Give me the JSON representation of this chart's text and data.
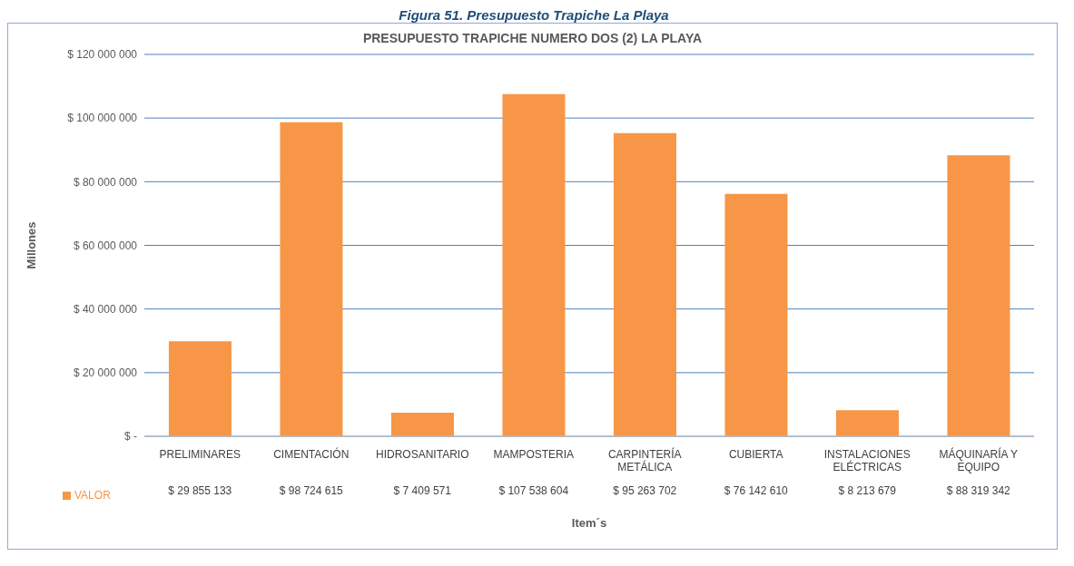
{
  "chart_data": {
    "type": "bar",
    "title": "PRESUPUESTO TRAPICHE NUMERO DOS (2) LA PLAYA",
    "annotations": [
      "Figura 51. Presupuesto Trapiche La Playa"
    ],
    "xlabel": "Item´s",
    "ylabel": "Millones",
    "categories": [
      "PRELIMINARES",
      "CIMENTACIÓN",
      "HIDROSANITARIO",
      "MAMPOSTERIA",
      "CARPINTERÍA METÁLICA",
      "CUBIERTA",
      "INSTALACIONES ELÉCTRICAS",
      "MÁQUINARÍA Y EQUIPO"
    ],
    "series": [
      {
        "name": "VALOR",
        "color": "#f79646",
        "values": [
          29855133,
          98724615,
          7409571,
          107538604,
          95263702,
          76142610,
          8213679,
          88319342
        ],
        "value_labels": [
          "$ 29 855 133",
          "$ 98 724 615",
          "$ 7 409 571",
          "$ 107 538 604",
          "$ 95 263 702",
          "$ 76 142 610",
          "$ 8 213 679",
          "$ 88 319 342"
        ]
      }
    ],
    "ylim": [
      0,
      120000000
    ],
    "yticks": [
      {
        "value": 0,
        "label": "$ -"
      },
      {
        "value": 20000000,
        "label": "$ 20 000 000"
      },
      {
        "value": 40000000,
        "label": "$ 40 000 000"
      },
      {
        "value": 60000000,
        "label": "$ 60 000 000"
      },
      {
        "value": 80000000,
        "label": "$ 80 000 000"
      },
      {
        "value": 100000000,
        "label": "$ 100 000 000"
      },
      {
        "value": 120000000,
        "label": "$ 120 000 000"
      }
    ],
    "grid": "y",
    "legend": "bottom left"
  }
}
